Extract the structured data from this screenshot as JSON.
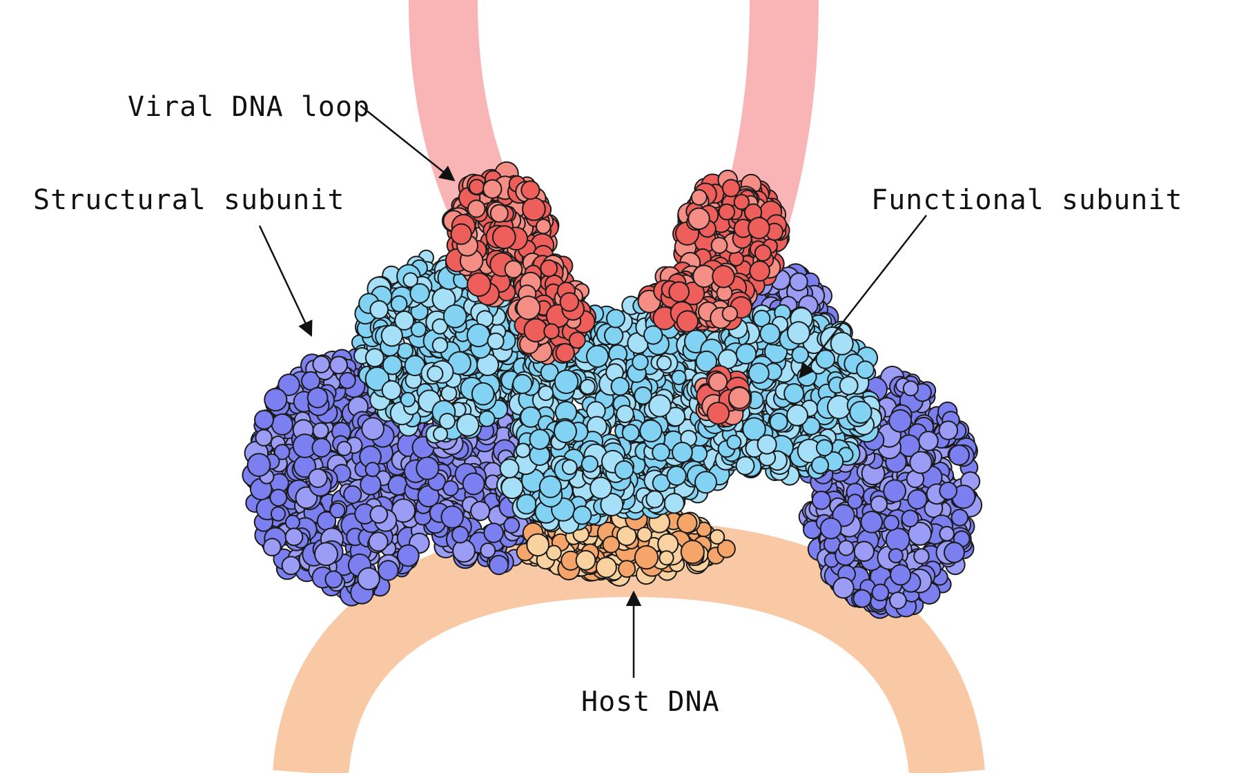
{
  "labels": {
    "viral_dna_loop": "Viral DNA loop",
    "structural_subunit": "Structural subunit",
    "functional_subunit": "Functional subunit",
    "host_dna": "Host DNA"
  },
  "colors": {
    "viral_dna_loop": "#f9b4b6",
    "host_dna_arc": "#f9c8a4",
    "viral_dna_atoms": "#ee5f5b",
    "viral_dna_atoms_light": "#f58f86",
    "structural_subunit": "#7b7ff0",
    "structural_subunit_light": "#9a9cf5",
    "functional_subunit": "#82d2f4",
    "functional_subunit_light": "#a6e0f8",
    "host_dna_atoms": "#f5a56a",
    "host_dna_atoms_light": "#f9d29f",
    "outline": "#1a1a1a",
    "text": "#111111"
  }
}
